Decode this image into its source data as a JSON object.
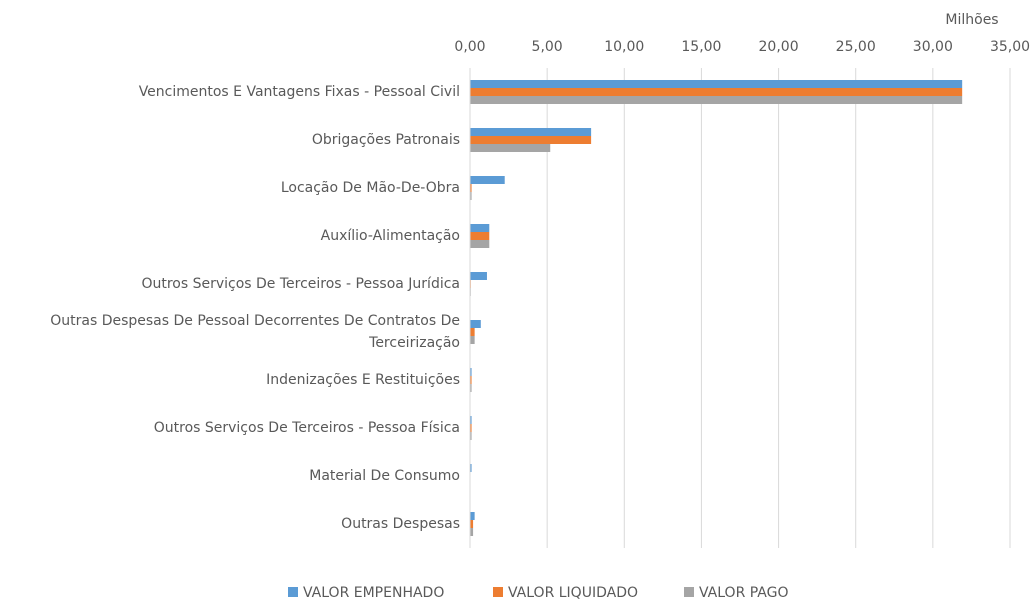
{
  "chart_data": {
    "type": "barh",
    "axis_unit": "Milhões",
    "categories": [
      "Vencimentos E Vantagens Fixas - Pessoal Civil",
      "Obrigações Patronais",
      "Locação De Mão-De-Obra",
      "Auxílio-Alimentação",
      "Outros Serviços De Terceiros - Pessoa Jurídica",
      "Outras Despesas De Pessoal Decorrentes De Contratos De Terceirização",
      "Indenizações E Restituições",
      "Outros Serviços De Terceiros - Pessoa Física",
      "Material De Consumo",
      "Outras Despesas"
    ],
    "series": [
      {
        "name": "VALOR EMPENHADO",
        "color": "#5b9bd5",
        "values": [
          31.9,
          7.85,
          2.25,
          1.25,
          1.1,
          0.7,
          0.1,
          0.1,
          0.1,
          0.3
        ]
      },
      {
        "name": "VALOR LIQUIDADO",
        "color": "#ed7d31",
        "values": [
          31.9,
          7.85,
          0.1,
          1.25,
          0.05,
          0.3,
          0.1,
          0.1,
          0,
          0.2
        ]
      },
      {
        "name": "VALOR PAGO",
        "color": "#a5a5a5",
        "values": [
          31.9,
          5.2,
          0.1,
          1.25,
          0.05,
          0.3,
          0.1,
          0.1,
          0,
          0.2
        ]
      }
    ],
    "xlim": [
      0,
      35
    ],
    "xticks": [
      {
        "value": 0,
        "label": "0,00"
      },
      {
        "value": 5,
        "label": "5,00"
      },
      {
        "value": 10,
        "label": "10,00"
      },
      {
        "value": 15,
        "label": "15,00"
      },
      {
        "value": 20,
        "label": "20,00"
      },
      {
        "value": 25,
        "label": "25,00"
      },
      {
        "value": 30,
        "label": "30,00"
      },
      {
        "value": 35,
        "label": "35,00"
      }
    ],
    "grid": true,
    "legend": "bottom"
  }
}
